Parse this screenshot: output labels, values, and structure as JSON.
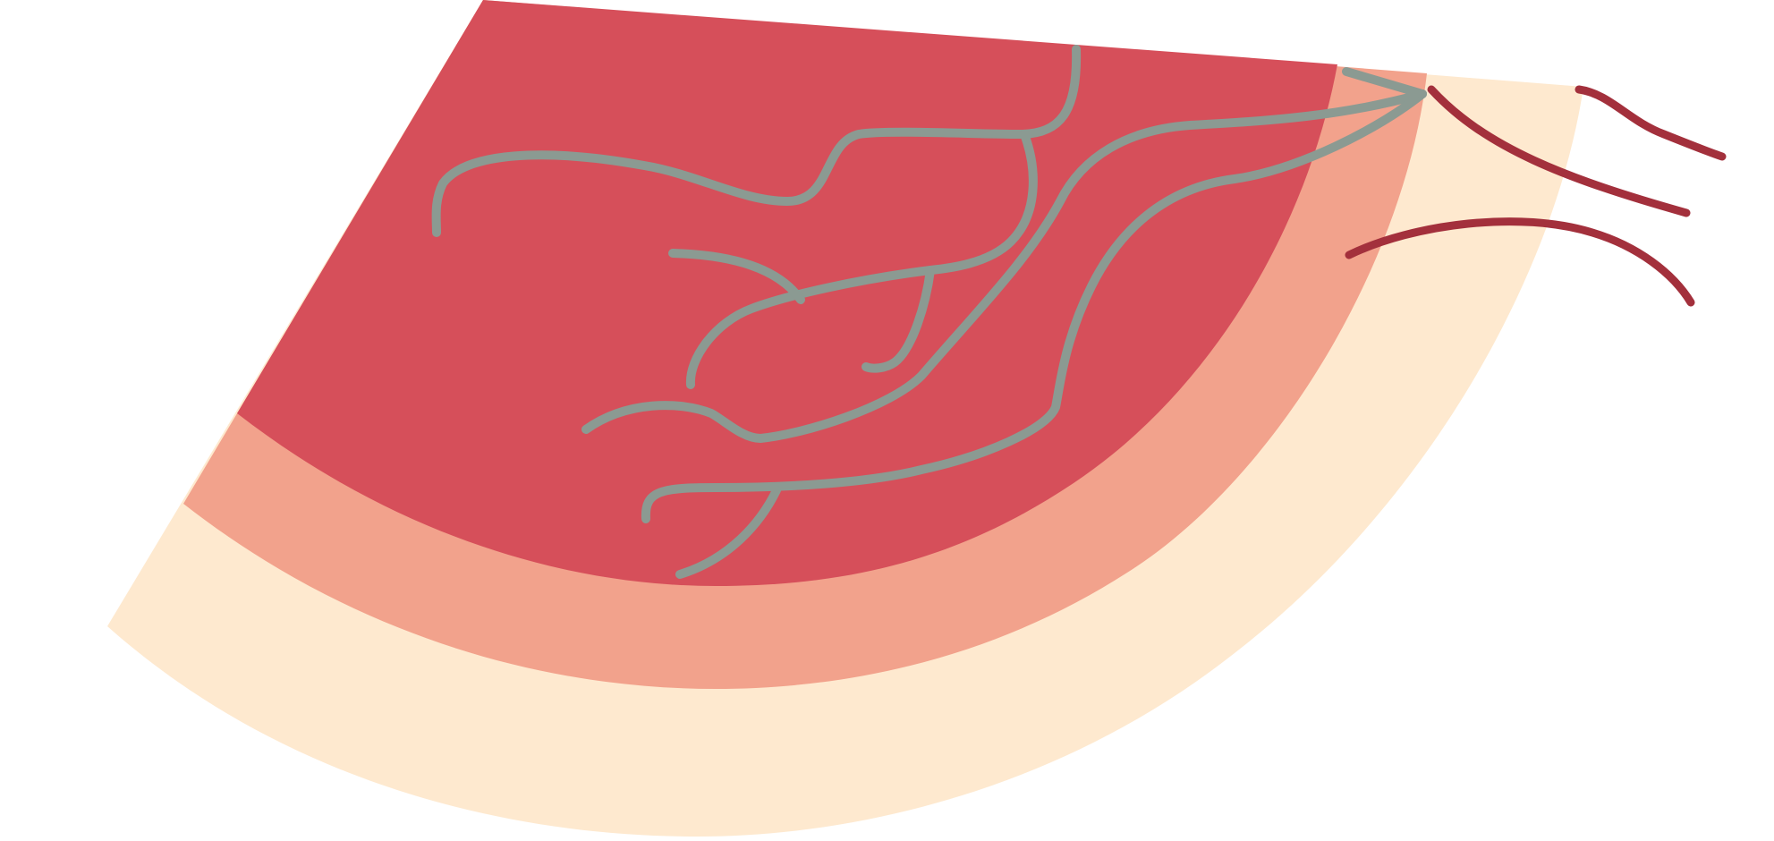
{
  "colors": {
    "background": "#ffffff",
    "outer_layer": "#FEE9CF",
    "middle_layer": "#F2A28C",
    "inner_layer": "#D64F5A",
    "vessels": "#8B9A92",
    "fibers": "#A3303C"
  },
  "layers": [
    {
      "name": "outer-layer",
      "color_key": "outer_layer"
    },
    {
      "name": "middle-layer",
      "color_key": "middle_layer"
    },
    {
      "name": "inner-layer",
      "color_key": "inner_layer"
    }
  ],
  "vessel_count": 8,
  "fiber_count": 3
}
